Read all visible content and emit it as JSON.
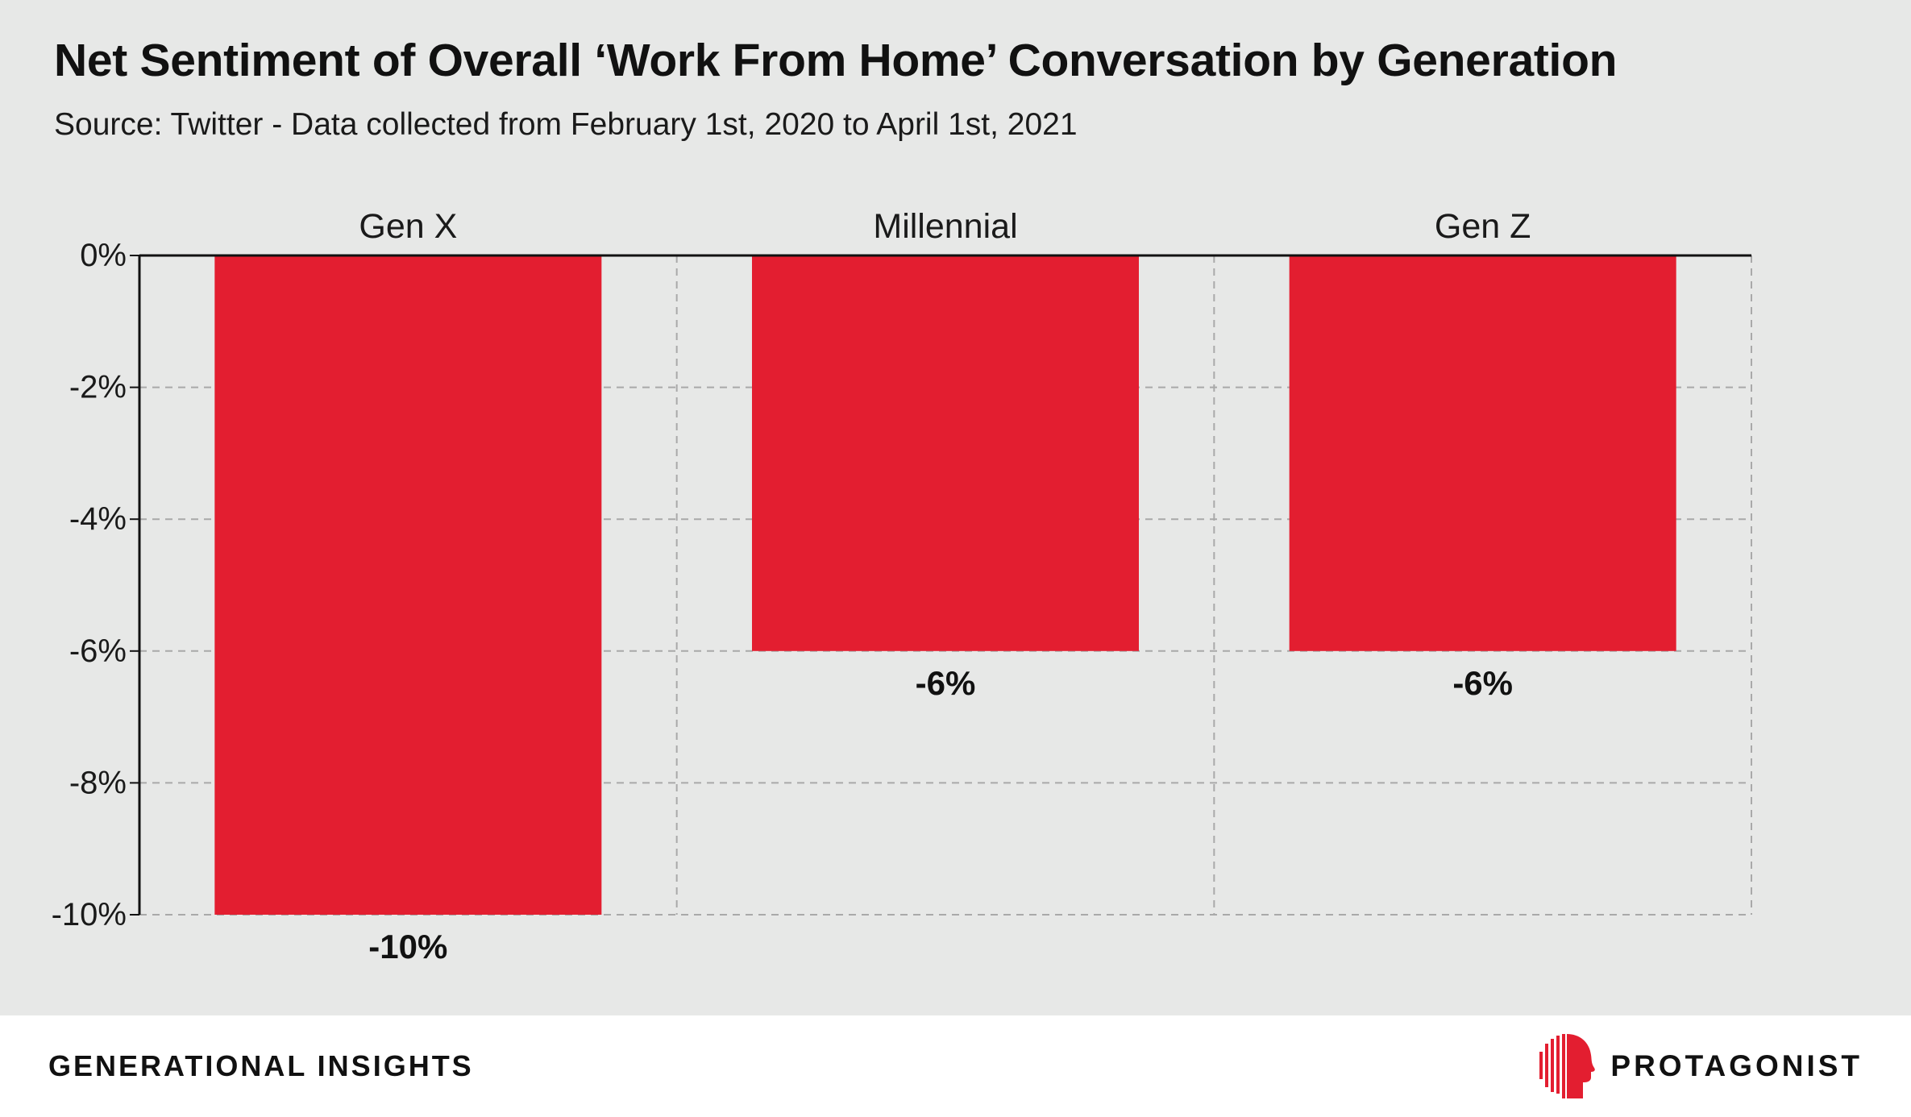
{
  "header": {
    "title": "Net Sentiment of Overall ‘Work From Home’ Conversation by Generation",
    "subtitle": "Source: Twitter - Data collected from February 1st, 2020 to April 1st, 2021"
  },
  "chart_data": {
    "type": "bar",
    "categories": [
      "Gen X",
      "Millennial",
      "Gen Z"
    ],
    "values": [
      -10,
      -6,
      -6
    ],
    "data_labels": [
      "-10%",
      "-6%",
      "-6%"
    ],
    "yticks": [
      0,
      -2,
      -4,
      -6,
      -8,
      -10
    ],
    "ytick_labels": [
      "0%",
      "-2%",
      "-4%",
      "-6%",
      "-8%",
      "-10%"
    ],
    "ylim": [
      -10,
      0
    ],
    "category_axis_position": "top",
    "grid": true,
    "bar_color": "#e31e30",
    "background_color": "#e7e8e7"
  },
  "footer": {
    "left_label": "GENERATIONAL INSIGHTS",
    "brand_name": "PROTAGONIST",
    "brand_logo_icon": "profile-head-icon",
    "brand_color": "#e31e30"
  }
}
